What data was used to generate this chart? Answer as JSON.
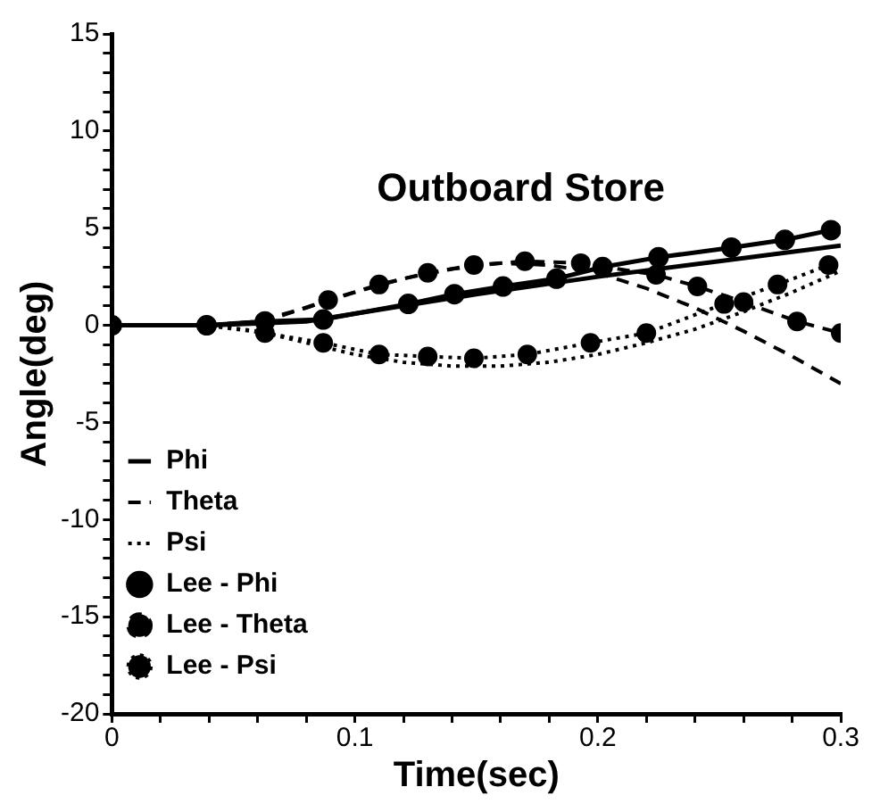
{
  "chart_data": {
    "type": "line",
    "title": "Outboard Store",
    "xlabel": "Time(sec)",
    "ylabel": "Angle(deg)",
    "xlim": [
      0,
      0.3
    ],
    "ylim": [
      -20,
      15
    ],
    "xticks": [
      0,
      {
        "value": 0.02,
        "label": null
      },
      {
        "value": 0.04,
        "label": null
      },
      {
        "value": 0.06,
        "label": null
      },
      {
        "value": 0.08,
        "label": null
      },
      0.1,
      {
        "value": 0.12,
        "label": null
      },
      {
        "value": 0.14,
        "label": null
      },
      {
        "value": 0.16,
        "label": null
      },
      {
        "value": 0.18,
        "label": null
      },
      0.2,
      {
        "value": 0.22,
        "label": null
      },
      {
        "value": 0.24,
        "label": null
      },
      {
        "value": 0.26,
        "label": null
      },
      {
        "value": 0.28,
        "label": null
      },
      0.3
    ],
    "yticks": [
      -20,
      {
        "value": -19,
        "label": null
      },
      {
        "value": -18,
        "label": null
      },
      {
        "value": -17,
        "label": null
      },
      {
        "value": -16,
        "label": null
      },
      -15,
      {
        "value": -14,
        "label": null
      },
      {
        "value": -13,
        "label": null
      },
      {
        "value": -12,
        "label": null
      },
      {
        "value": -11,
        "label": null
      },
      -10,
      {
        "value": -9,
        "label": null
      },
      {
        "value": -8,
        "label": null
      },
      {
        "value": -7,
        "label": null
      },
      {
        "value": -6,
        "label": null
      },
      -5,
      {
        "value": -4,
        "label": null
      },
      {
        "value": -3,
        "label": null
      },
      {
        "value": -2,
        "label": null
      },
      {
        "value": -1,
        "label": null
      },
      0,
      {
        "value": 1,
        "label": null
      },
      {
        "value": 2,
        "label": null
      },
      {
        "value": 3,
        "label": null
      },
      {
        "value": 4,
        "label": null
      },
      5,
      {
        "value": 6,
        "label": null
      },
      {
        "value": 7,
        "label": null
      },
      {
        "value": 8,
        "label": null
      },
      {
        "value": 9,
        "label": null
      },
      10,
      {
        "value": 11,
        "label": null
      },
      {
        "value": 12,
        "label": null
      },
      {
        "value": 13,
        "label": null
      },
      {
        "value": 14,
        "label": null
      },
      15
    ],
    "grid": false,
    "legend": "bottom left",
    "series": [
      {
        "name": "Phi",
        "color": "#000000",
        "line_style": "solid",
        "marker": "none",
        "x": [
          0,
          0.04,
          0.06,
          0.08,
          0.1,
          0.15,
          0.2,
          0.25,
          0.3
        ],
        "values": [
          0,
          0,
          0.1,
          0.2,
          0.6,
          1.6,
          2.5,
          3.3,
          4.1
        ]
      },
      {
        "name": "Theta",
        "color": "#000000",
        "line_style": "dashed",
        "marker": "none",
        "x": [
          0,
          0.04,
          0.06,
          0.08,
          0.1,
          0.12,
          0.14,
          0.16,
          0.18,
          0.2,
          0.22,
          0.24,
          0.26,
          0.28,
          0.3
        ],
        "values": [
          0,
          0,
          0.2,
          0.9,
          1.7,
          2.4,
          2.9,
          3.2,
          3.1,
          2.7,
          1.9,
          0.9,
          -0.3,
          -1.6,
          -3.0
        ]
      },
      {
        "name": "Psi",
        "color": "#000000",
        "line_style": "dotted",
        "marker": "none",
        "x": [
          0,
          0.04,
          0.06,
          0.08,
          0.1,
          0.12,
          0.14,
          0.16,
          0.18,
          0.2,
          0.22,
          0.24,
          0.26,
          0.28,
          0.3
        ],
        "values": [
          0,
          0,
          -0.3,
          -0.9,
          -1.5,
          -1.9,
          -2.1,
          -2.1,
          -1.9,
          -1.5,
          -0.9,
          -0.2,
          0.7,
          1.7,
          2.8
        ]
      },
      {
        "name": "Lee - Phi",
        "color": "#000000",
        "line_style": "solid",
        "marker": "circle",
        "x": [
          0,
          0.039,
          0.063,
          0.087,
          0.122,
          0.141,
          0.161,
          0.183,
          0.202,
          0.225,
          0.255,
          0.277,
          0.296
        ],
        "values": [
          0,
          0,
          0.2,
          0.3,
          1.1,
          1.6,
          2.0,
          2.4,
          3.0,
          3.5,
          4.0,
          4.4,
          4.9
        ]
      },
      {
        "name": "Lee - Theta",
        "color": "#000000",
        "line_style": "dashed",
        "marker": "circle",
        "x": [
          0,
          0.039,
          0.063,
          0.089,
          0.11,
          0.13,
          0.149,
          0.17,
          0.193,
          0.224,
          0.241,
          0.26,
          0.282,
          0.3
        ],
        "values": [
          0,
          0,
          0.2,
          1.3,
          2.1,
          2.7,
          3.1,
          3.3,
          3.2,
          2.6,
          2.0,
          1.2,
          0.2,
          -0.4
        ]
      },
      {
        "name": "Lee - Psi",
        "color": "#000000",
        "line_style": "dotted",
        "marker": "circle",
        "x": [
          0,
          0.039,
          0.063,
          0.087,
          0.11,
          0.13,
          0.149,
          0.171,
          0.197,
          0.22,
          0.252,
          0.274,
          0.295
        ],
        "values": [
          0,
          0,
          -0.4,
          -0.9,
          -1.5,
          -1.6,
          -1.7,
          -1.5,
          -0.9,
          -0.4,
          1.1,
          2.1,
          3.1
        ]
      }
    ]
  }
}
